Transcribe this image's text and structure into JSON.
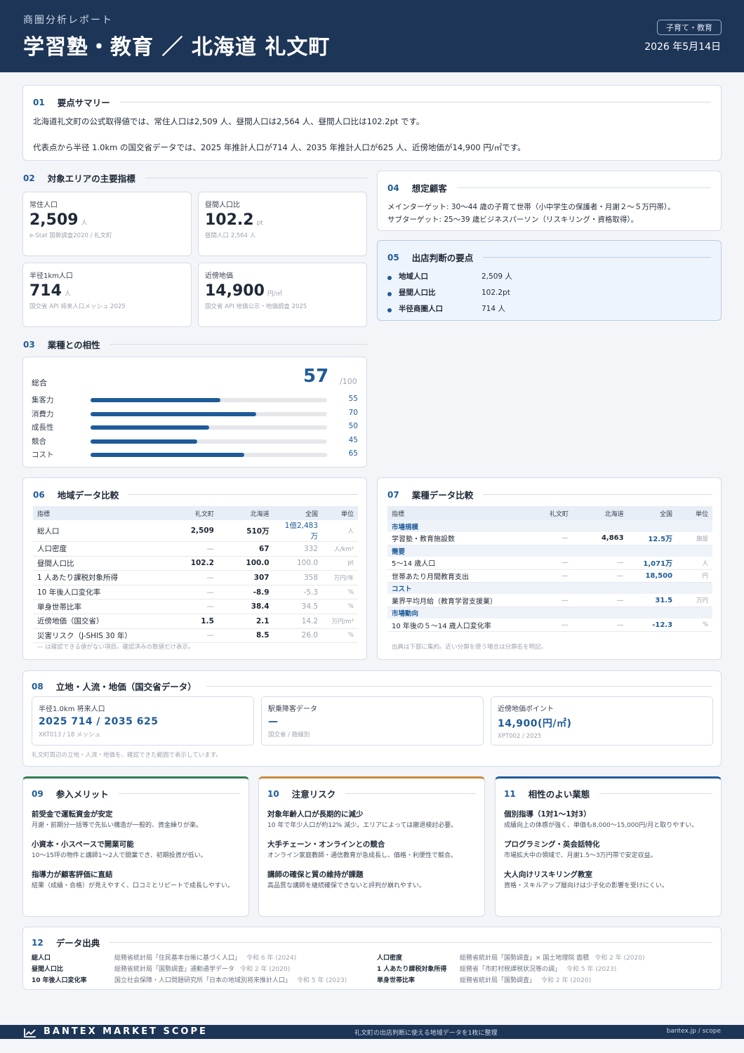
{
  "header": {
    "eyebrow": "商圏分析レポート",
    "title": "学習塾・教育 ／ 北海道 礼文町",
    "badge": "子育て・教育",
    "date": "2026 年5月14日"
  },
  "summary": {
    "num": "01",
    "title": "要点サマリー",
    "p1": "北海道礼文町の公式取得値では、常住人口は2,509 人、昼間人口は2,564 人、昼間人口比は102.2pt です。",
    "p2": "代表点から半径 1.0km の国交省データでは、2025 年推計人口が714 人、2035 年推計人口が625 人、近傍地価が14,900 円/㎡です。"
  },
  "indicators": {
    "num": "02",
    "title": "対象エリアの主要指標",
    "k1": {
      "label": "常住人口",
      "value": "2,509",
      "unit": "人",
      "src": "e-Stat 国勢調査2020 / 礼文町"
    },
    "k2": {
      "label": "昼間人口比",
      "value": "102.2",
      "unit": "pt",
      "src": "昼間人口 2,564 人"
    },
    "k3": {
      "label": "半径1km人口",
      "value": "714",
      "unit": "人",
      "src": "国交省 API 将来人口メッシュ 2025"
    },
    "k4": {
      "label": "近傍地価",
      "value": "14,900",
      "unit": "円/㎡",
      "src": "国交省 API 地価公示・地価調査 2025"
    }
  },
  "compat": {
    "num": "03",
    "title": "業種との相性",
    "total_label": "総合",
    "score": "57",
    "max": "/100",
    "bars": [
      {
        "label": "集客力",
        "value": 55,
        "text": "55"
      },
      {
        "label": "消費力",
        "value": 70,
        "text": "70"
      },
      {
        "label": "成長性",
        "value": 50,
        "text": "50"
      },
      {
        "label": "競合",
        "value": 45,
        "text": "45"
      },
      {
        "label": "コスト",
        "value": 65,
        "text": "65"
      }
    ]
  },
  "customer": {
    "num": "04",
    "title": "想定顧客",
    "main": "メインターゲット: 30～44 歳の子育て世帯（小中学生の保護者・月謝２～５万円帯）。",
    "sub": "サブターゲット: 25～39 歳ビジネスパーソン（リスキリング・資格取得）。"
  },
  "decision": {
    "num": "05",
    "title": "出店判断の要点",
    "items": [
      {
        "label": "地域人口",
        "value": "2,509 人"
      },
      {
        "label": "昼間人口比",
        "value": "102.2pt"
      },
      {
        "label": "半径商圏人口",
        "value": "714 人"
      }
    ]
  },
  "region": {
    "num": "06",
    "title": "地域データ比較",
    "headers": [
      "指標",
      "礼文町",
      "北海道",
      "全国",
      "単位"
    ],
    "rows": [
      [
        "総人口",
        "2,509",
        "510万",
        "1億2,483万",
        "人"
      ],
      [
        "人口密度",
        "—",
        "67",
        "332",
        "人/km²"
      ],
      [
        "昼間人口比",
        "102.2",
        "100.0",
        "100.0",
        "pt"
      ],
      [
        "1 人あたり課税対象所得",
        "—",
        "307",
        "358",
        "万円/年"
      ],
      [
        "10 年後人口変化率",
        "—",
        "-8.9",
        "-5.3",
        "%"
      ],
      [
        "単身世帯比率",
        "—",
        "38.4",
        "34.5",
        "%"
      ],
      [
        "近傍地価（国交省）",
        "1.5",
        "2.1",
        "14.2",
        "万円/m²"
      ],
      [
        "災害リスク（J-SHIS 30 年）",
        "—",
        "8.5",
        "26.0",
        "%"
      ]
    ],
    "note": "— は確認できる値がない項目。確認済みの数値だけ表示。"
  },
  "industry": {
    "num": "07",
    "title": "業種データ比較",
    "headers": [
      "指標",
      "礼文町",
      "北海道",
      "全国",
      "単位"
    ],
    "g1": "市場規模",
    "r1": [
      "学習塾・教育施設数",
      "—",
      "4,863",
      "12.5万",
      "施設"
    ],
    "g2": "需要",
    "r2": [
      "5～14 歳人口",
      "—",
      "—",
      "1,071万",
      "人"
    ],
    "r3": [
      "世帯あたり月間教育支出",
      "—",
      "—",
      "18,500",
      "円"
    ],
    "g3": "コスト",
    "r4": [
      "業界平均月給（教育学習支援業）",
      "—",
      "—",
      "31.5",
      "万円"
    ],
    "g4": "市場動向",
    "r5": [
      "10 年後の５～14 歳人口変化率",
      "—",
      "—",
      "-12.3",
      "%"
    ],
    "note": "出典は下部に集約。近い分類を使う場合は分類名を明記。"
  },
  "location": {
    "num": "08",
    "title": "立地・人流・地価（国交省データ）",
    "c1": {
      "label": "半径1.0km 将来人口",
      "value": "2025 714 / 2035 625",
      "src": "XKT013 / 18 メッシュ"
    },
    "c2": {
      "label": "駅乗降客データ",
      "value": "—",
      "src": "国交省 / 路線別"
    },
    "c3": {
      "label": "近傍地価ポイント",
      "value": "14,900(円/㎡)",
      "src": "XPT002 / 2025"
    },
    "note": "礼文町周辺の立地・人流・地価を、確認できた範囲で表示しています。"
  },
  "merits": {
    "num": "09",
    "title": "参入メリット",
    "color": "#2e7d4f",
    "items": [
      {
        "h": "前受金で運転資金が安定",
        "b": "月謝・前期分一括等で先払い構造が一般的、資金繰りが楽。"
      },
      {
        "h": "小資本・小スペースで開業可能",
        "b": "10～15坪の物件と講師1～2人で開業でき、初期投資が低い。"
      },
      {
        "h": "指導力が顧客評価に直結",
        "b": "結果（成績・合格）が見えやすく、口コミとリピートで成長しやすい。"
      }
    ]
  },
  "risks": {
    "num": "10",
    "title": "注意リスク",
    "color": "#c98a3c",
    "items": [
      {
        "h": "対象年齢人口が長期的に減少",
        "b": "10 年で年少人口が約12% 減少。エリアによっては撤退検討必要。"
      },
      {
        "h": "大手チェーン・オンラインとの競合",
        "b": "オンライン家庭教師・通信教育が急成長し、価格・利便性で競合。"
      },
      {
        "h": "講師の確保と質の維持が課題",
        "b": "高品質な講師を継続確保できないと評判が崩れやすい。"
      }
    ]
  },
  "related": {
    "num": "11",
    "title": "相性のよい業態",
    "color": "#1f5b98",
    "items": [
      {
        "h": "個別指導（1対1～1対3）",
        "b": "成績向上の体感が強く、単価も8,000～15,000円/月と取りやすい。"
      },
      {
        "h": "プログラミング・英会話特化",
        "b": "市場拡大中の領域で、月謝1.5～3万円帯で安定収益。"
      },
      {
        "h": "大人向けリスキリング教室",
        "b": "資格・スキルアップ層向けは少子化の影響を受けにくい。"
      }
    ]
  },
  "sources": {
    "num": "12",
    "title": "データ出典",
    "left": [
      {
        "k": "総人口",
        "v": "総務省統計局「住民基本台帳に基づく人口」",
        "y": "令和 6 年 (2024)"
      },
      {
        "k": "昼間人口比",
        "v": "総務省統計局「国勢調査」通勤通学データ",
        "y": "令和 2 年 (2020)"
      },
      {
        "k": "10 年後人口変化率",
        "v": "国立社会保障・人口問題研究所「日本の地域別将来推計人口」",
        "y": "令和 5 年 (2023)"
      }
    ],
    "right": [
      {
        "k": "人口密度",
        "v": "総務省統計局「国勢調査」× 国土地理院 面積",
        "y": "令和 2 年 (2020)"
      },
      {
        "k": "1 人あたり課税対象所得",
        "v": "総務省「市町村税課税状況等の調」",
        "y": "令和 5 年 (2023)"
      },
      {
        "k": "単身世帯比率",
        "v": "総務省統計局「国勢調査」",
        "y": "令和 2 年 (2020)"
      }
    ]
  },
  "footer": {
    "brand": "BANTEX MARKET SCOPE",
    "tagline": "礼文町の出店判断に使える地域データを1枚に整理",
    "url": "bantex.jp / scope"
  }
}
